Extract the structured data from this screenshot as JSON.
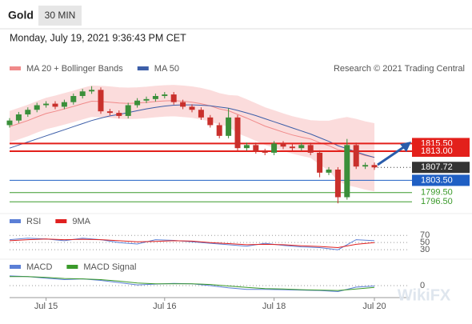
{
  "header": {
    "title": "Gold",
    "timeframe": "30 MIN",
    "timestamp": "Monday, July 19, 2021 9:36:43 PM CET"
  },
  "watermark": "WikiFX",
  "chart_data": [
    {
      "type": "candlestick",
      "source": "Research © 2021 Trading Central",
      "categories": [
        null,
        null,
        null,
        null,
        "Jul 15",
        null,
        null,
        null,
        null,
        null,
        null,
        null,
        null,
        null,
        null,
        null,
        null,
        "Jul 16",
        null,
        null,
        null,
        null,
        null,
        null,
        null,
        null,
        null,
        null,
        null,
        "Jul 18",
        null,
        null,
        null,
        null,
        null,
        null,
        null,
        null,
        null,
        null,
        "Jul 20"
      ],
      "open": [
        1821.5,
        1823,
        1825,
        1826.5,
        1828,
        1828.5,
        1827.5,
        1829,
        1831,
        1832.5,
        1833,
        1826,
        1825.5,
        1824.5,
        1828,
        1829.5,
        1830,
        1831,
        1831.5,
        1829,
        1827.5,
        1826.5,
        1824,
        1821.5,
        1818,
        1824,
        1814,
        1815,
        1813,
        1812.5,
        1815.5,
        1814.5,
        1814,
        1815,
        1812.5,
        1806,
        1807,
        1798,
        1815,
        1808,
        1808.5
      ],
      "high": [
        1823.8,
        1825.8,
        1827.3,
        1828.8,
        1829.3,
        1829.3,
        1829.8,
        1831.8,
        1833.3,
        1834.2,
        1833.8,
        1826.8,
        1826.3,
        1828.8,
        1830.3,
        1830.8,
        1831.8,
        1832.3,
        1832.3,
        1829.8,
        1828.3,
        1827.3,
        1824.8,
        1822.3,
        1827,
        1824.8,
        1815.8,
        1815.8,
        1813.8,
        1816.3,
        1816.3,
        1815.3,
        1815.8,
        1815.8,
        1813.3,
        1807.8,
        1807.8,
        1817,
        1815.8,
        1809.3,
        1809.3
      ],
      "low": [
        1820.7,
        1822.2,
        1824.2,
        1825.7,
        1827.2,
        1826.7,
        1826.7,
        1828.2,
        1830.2,
        1831.7,
        1825.2,
        1824.7,
        1823.7,
        1823.7,
        1827.2,
        1828.7,
        1829.2,
        1830.2,
        1828.2,
        1826.7,
        1825.7,
        1823.2,
        1820.7,
        1817.2,
        1817.2,
        1813.2,
        1813.2,
        1812.2,
        1811.7,
        1811.7,
        1813.7,
        1813.2,
        1813.2,
        1811.7,
        1804.5,
        1805.2,
        1796,
        1797.2,
        1807.2,
        1807.2,
        1806.9
      ],
      "close": [
        1823,
        1825,
        1826.5,
        1828,
        1828.5,
        1827.5,
        1829,
        1831,
        1832.5,
        1833,
        1826,
        1825.5,
        1824.5,
        1828,
        1829.5,
        1830,
        1831,
        1831.5,
        1829,
        1827.5,
        1826.5,
        1824,
        1821.5,
        1818,
        1824,
        1814,
        1815,
        1813,
        1812.5,
        1815.5,
        1814.5,
        1814,
        1815,
        1812.5,
        1806,
        1807,
        1798,
        1815,
        1808,
        1808.5,
        1807.72
      ],
      "up_color": "#3a8f3a",
      "down_color": "#c9302c",
      "series": [
        {
          "name": "MA 20 + Bollinger Bands",
          "color": "#f08a8a",
          "band_color": "#fbdcdc",
          "values": [
            1821,
            1822,
            1823,
            1824.2,
            1825.3,
            1826,
            1826.8,
            1827.6,
            1828.5,
            1829.3,
            1829.2,
            1829,
            1828.7,
            1828.6,
            1828.7,
            1828.9,
            1829.2,
            1829.4,
            1829.5,
            1829.3,
            1829,
            1828.5,
            1827.8,
            1826.8,
            1826.2,
            1825,
            1823.8,
            1822.5,
            1821.2,
            1820.2,
            1819.2,
            1818.3,
            1817.6,
            1817,
            1815.8,
            1814.8,
            1813.5,
            1813,
            1812.4,
            1811.6,
            1811
          ],
          "upper": [
            1826,
            1827,
            1828,
            1829.2,
            1830.3,
            1831,
            1831.8,
            1832.6,
            1833.5,
            1834.3,
            1834.2,
            1834,
            1833.7,
            1833.6,
            1833.7,
            1833.9,
            1834.2,
            1834.4,
            1834.5,
            1834.3,
            1834,
            1833.5,
            1832.8,
            1831.8,
            1831.2,
            1831,
            1829.8,
            1828.5,
            1827.2,
            1826.2,
            1825.2,
            1824.3,
            1823.6,
            1823,
            1822.8,
            1822.8,
            1823.5,
            1824,
            1823.4,
            1822.6,
            1822
          ],
          "lower": [
            1816,
            1817,
            1818,
            1819.2,
            1820.3,
            1821,
            1821.8,
            1822.6,
            1823.5,
            1824.3,
            1824.2,
            1824,
            1823.7,
            1823.6,
            1823.7,
            1823.9,
            1824.2,
            1824.4,
            1824.5,
            1824.3,
            1824,
            1823.5,
            1822.8,
            1821.8,
            1821.2,
            1819,
            1817.8,
            1816.5,
            1815.2,
            1814.2,
            1813.2,
            1812.3,
            1811.6,
            1811,
            1808.8,
            1806.8,
            1803.5,
            1802,
            1801.4,
            1800.6,
            1800
          ]
        },
        {
          "name": "MA 50",
          "color": "#3c5ea8",
          "values": [
            1814,
            1815,
            1816,
            1817,
            1818,
            1819,
            1820,
            1821,
            1822,
            1823,
            1823.8,
            1824.5,
            1825,
            1825.6,
            1826.2,
            1826.8,
            1827.3,
            1827.7,
            1828,
            1828.1,
            1828.1,
            1828,
            1827.8,
            1827.4,
            1827,
            1826.3,
            1825.5,
            1824.6,
            1823.6,
            1822.6,
            1821.6,
            1820.6,
            1819.6,
            1818.6,
            1817.4,
            1816.2,
            1814.8,
            1813.8,
            1812.8,
            1811.8,
            1811
          ]
        }
      ],
      "levels": [
        {
          "value": 1815.5,
          "label": "1815.50",
          "color": "#e3201b",
          "boxed": true,
          "line_width": 2
        },
        {
          "value": 1813,
          "label": "1813.00",
          "color": "#e3201b",
          "boxed": true,
          "line_width": 2
        },
        {
          "value": 1807.72,
          "label": "1807.72",
          "color": "#333333",
          "boxed": true,
          "line_width": 1,
          "dotted": true
        },
        {
          "value": 1803.5,
          "label": "1803.50",
          "color": "#1f5fc4",
          "boxed": true,
          "line_width": 1
        },
        {
          "value": 1799.5,
          "label": "1799.50",
          "color": "#3a9a2a",
          "boxed": false,
          "line_width": 1
        },
        {
          "value": 1796.5,
          "label": "1796.50",
          "color": "#3a9a2a",
          "boxed": false,
          "line_width": 1
        }
      ],
      "ylim": [
        1795,
        1837
      ]
    },
    {
      "type": "line",
      "x": [
        0,
        2,
        4,
        6,
        8,
        10,
        12,
        14,
        16,
        18,
        20,
        22,
        24,
        26,
        28,
        30,
        32,
        34,
        36,
        38,
        40
      ],
      "xlim": [
        0,
        40
      ],
      "series": [
        {
          "name": "RSI",
          "color": "#5b7fd6",
          "values": [
            58,
            62,
            60,
            55,
            62,
            58,
            50,
            46,
            58,
            56,
            52,
            48,
            44,
            40,
            48,
            42,
            38,
            36,
            30,
            58,
            55
          ]
        },
        {
          "name": "9MA",
          "color": "#e02020",
          "values": [
            55,
            58,
            60,
            58,
            59,
            58,
            55,
            52,
            53,
            55,
            54,
            50,
            47,
            44,
            45,
            44,
            41,
            39,
            36,
            45,
            50
          ]
        }
      ],
      "ylim": [
        17,
        86
      ],
      "yticks": [
        70,
        50,
        30
      ],
      "grid": true
    },
    {
      "type": "line",
      "x": [
        0,
        2,
        4,
        6,
        8,
        10,
        12,
        14,
        16,
        18,
        20,
        22,
        24,
        26,
        28,
        30,
        32,
        34,
        36,
        38,
        40
      ],
      "xlim": [
        0,
        40
      ],
      "series": [
        {
          "name": "MACD",
          "color": "#5b7fd6",
          "values": [
            2.6,
            2.4,
            2.0,
            1.6,
            1.8,
            1.4,
            0.8,
            0.2,
            0.4,
            0.6,
            0.5,
            0.0,
            -0.6,
            -1.0,
            -1.0,
            -1.1,
            -1.2,
            -1.3,
            -1.6,
            -0.4,
            -0.1
          ]
        },
        {
          "name": "MACD Signal",
          "color": "#3a9a2a",
          "values": [
            2.4,
            2.4,
            2.2,
            1.9,
            1.8,
            1.6,
            1.2,
            0.7,
            0.5,
            0.5,
            0.5,
            0.3,
            -0.1,
            -0.5,
            -0.8,
            -0.9,
            -1.1,
            -1.2,
            -1.3,
            -0.9,
            -0.5
          ]
        }
      ],
      "ylim": [
        -3,
        3
      ],
      "yticks": [
        0
      ],
      "grid": true
    }
  ]
}
